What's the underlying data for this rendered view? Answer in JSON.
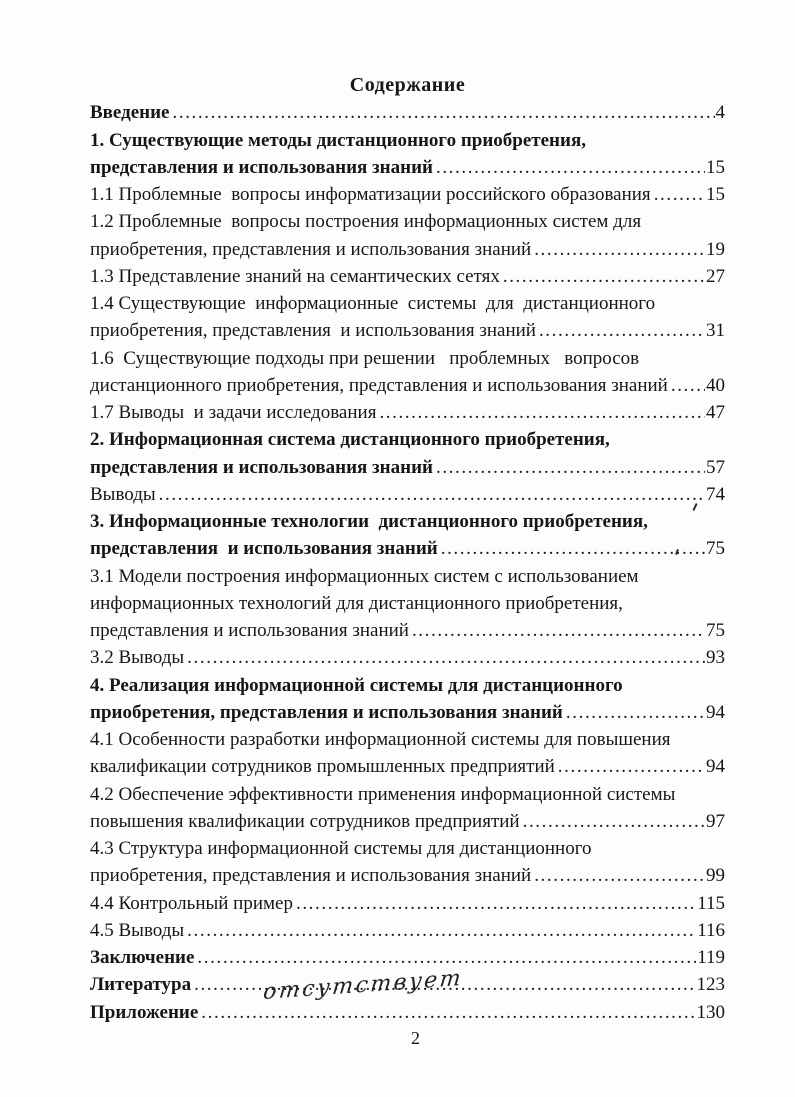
{
  "page": {
    "title": "Содержание",
    "footer_page_number": "2",
    "handwritten_note": "отсутствует",
    "ink_color": "#161616",
    "paper_color": "#fdfdfd"
  },
  "toc": {
    "entries": [
      {
        "text": "Введение",
        "bold": true,
        "page": "4"
      },
      {
        "text": "1. Существующие методы дистанционного приобретения,",
        "bold": true,
        "page": null
      },
      {
        "text": "представления и использования знаний",
        "bold": true,
        "page": "15"
      },
      {
        "text": "1.1 Проблемные  вопросы информатизации российского образования",
        "bold": false,
        "page": "15"
      },
      {
        "text": "1.2 Проблемные  вопросы построения информационных систем для",
        "bold": false,
        "page": null
      },
      {
        "text": "приобретения, представления и использования знаний",
        "bold": false,
        "page": "19"
      },
      {
        "text": "1.3 Представление знаний на семантических сетях",
        "bold": false,
        "page": "27"
      },
      {
        "text": "1.4 Существующие  информационные  системы  для  дистанционного",
        "bold": false,
        "page": null
      },
      {
        "text": "приобретения, представления  и использования знаний",
        "bold": false,
        "page": "31"
      },
      {
        "text": "1.6  Существующие подходы при решении   проблемных   вопросов",
        "bold": false,
        "page": null
      },
      {
        "text": "дистанционного приобретения, представления и использования знаний",
        "bold": false,
        "page": "40"
      },
      {
        "text": "1.7 Выводы  и задачи исследования",
        "bold": false,
        "page": "47"
      },
      {
        "text": "2. Информационная система дистанционного приобретения,",
        "bold": true,
        "page": null
      },
      {
        "text": "представления и использования знаний",
        "bold": true,
        "page": "57"
      },
      {
        "text": "Выводы",
        "bold": false,
        "page": "74"
      },
      {
        "text": "3. Информационные технологии  дистанционного приобретения,",
        "bold": true,
        "page": null
      },
      {
        "text": "представления  и использования знаний",
        "bold": true,
        "page": "75"
      },
      {
        "text": "3.1 Модели построения информационных систем с использованием",
        "bold": false,
        "page": null
      },
      {
        "text": "информационных технологий для дистанционного приобретения,",
        "bold": false,
        "page": null
      },
      {
        "text": "представления и использования знаний",
        "bold": false,
        "page": "75"
      },
      {
        "text": "3.2 Выводы",
        "bold": false,
        "page": "93"
      },
      {
        "text": "4. Реализация информационной системы для дистанционного",
        "bold": true,
        "page": null
      },
      {
        "text": "приобретения, представления и использования знаний",
        "bold": true,
        "page": "94"
      },
      {
        "text": "4.1 Особенности разработки информационной системы для повышения",
        "bold": false,
        "page": null
      },
      {
        "text": "квалификации сотрудников промышленных предприятий",
        "bold": false,
        "page": "94"
      },
      {
        "text": "4.2 Обеспечение эффективности применения информационной системы",
        "bold": false,
        "page": null
      },
      {
        "text": "повышения квалификации сотрудников предприятий",
        "bold": false,
        "page": "97"
      },
      {
        "text": "4.3 Структура информационной системы для дистанционного",
        "bold": false,
        "page": null
      },
      {
        "text": "приобретения, представления и использования знаний",
        "bold": false,
        "page": "99"
      },
      {
        "text": "4.4 Контрольный пример",
        "bold": false,
        "page": "115"
      },
      {
        "text": "4.5 Выводы",
        "bold": false,
        "page": "116"
      },
      {
        "text": "Заключение",
        "bold": true,
        "page": "119"
      },
      {
        "text": "Литература",
        "bold": true,
        "page": "123"
      },
      {
        "text": "Приложение",
        "bold": true,
        "page": "130"
      }
    ]
  }
}
